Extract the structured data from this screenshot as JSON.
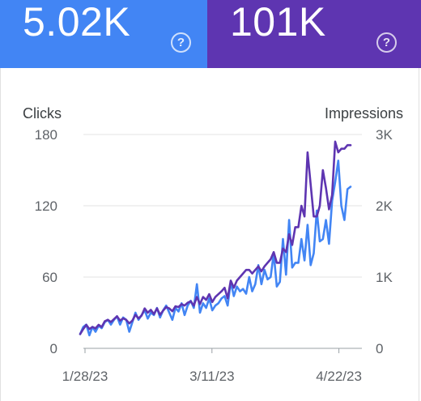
{
  "cards": [
    {
      "metric": "clicks",
      "value": "5.02K",
      "color": "#4285f4",
      "help_icon": "help-circle-icon"
    },
    {
      "metric": "impressions",
      "value": "101K",
      "color": "#5e35b1",
      "help_icon": "help-circle-icon"
    }
  ],
  "chart_data": {
    "type": "line",
    "left_axis": {
      "title": "Clicks",
      "ylim": [
        0,
        180
      ],
      "ticks": [
        "0",
        "60",
        "120",
        "180"
      ]
    },
    "right_axis": {
      "title": "Impressions",
      "ylim": [
        0,
        3000
      ],
      "ticks": [
        "0",
        "1K",
        "2K",
        "3K"
      ]
    },
    "x_tick_labels": [
      "1/28/23",
      "3/11/23",
      "4/22/23"
    ],
    "x_tick_dates": [
      "2023-01-28",
      "2023-03-11",
      "2023-04-22"
    ],
    "x_range": [
      "2023-01-28",
      "2023-04-28"
    ],
    "grid": true,
    "legend": "none",
    "series": [
      {
        "metric": "clicks",
        "axis": "left",
        "color": "#4285f4",
        "values": [
          12,
          18,
          20,
          11,
          18,
          14,
          19,
          17,
          22,
          24,
          20,
          24,
          27,
          20,
          26,
          24,
          14,
          22,
          30,
          24,
          28,
          32,
          25,
          30,
          28,
          34,
          26,
          32,
          36,
          30,
          24,
          34,
          31,
          38,
          28,
          36,
          40,
          34,
          54,
          30,
          38,
          34,
          42,
          32,
          36,
          38,
          42,
          44,
          36,
          56,
          44,
          52,
          48,
          50,
          46,
          60,
          48,
          54,
          70,
          54,
          66,
          58,
          60,
          80,
          52,
          56,
          92,
          62,
          108,
          68,
          72,
          72,
          92,
          74,
          104,
          70,
          80,
          116,
          90,
          92,
          108,
          88,
          124,
          140,
          158,
          120,
          108,
          134,
          136
        ]
      },
      {
        "metric": "impressions",
        "axis": "right",
        "color": "#5e35b1",
        "values": [
          200,
          270,
          330,
          270,
          300,
          280,
          330,
          300,
          380,
          400,
          370,
          410,
          450,
          390,
          420,
          400,
          350,
          390,
          470,
          420,
          460,
          560,
          500,
          540,
          480,
          560,
          470,
          530,
          580,
          560,
          520,
          590,
          580,
          620,
          600,
          640,
          660,
          600,
          720,
          620,
          720,
          680,
          760,
          650,
          720,
          760,
          800,
          850,
          700,
          950,
          850,
          950,
          1000,
          1050,
          1100,
          1100,
          1050,
          1100,
          1150,
          1080,
          1150,
          1200,
          1250,
          1350,
          1200,
          1200,
          1400,
          1350,
          1600,
          1450,
          1700,
          1700,
          2000,
          1850,
          2750,
          2300,
          1850,
          1850,
          2000,
          2500,
          2250,
          1950,
          2150,
          2900,
          2750,
          2800,
          2800,
          2850,
          2850
        ]
      }
    ]
  }
}
